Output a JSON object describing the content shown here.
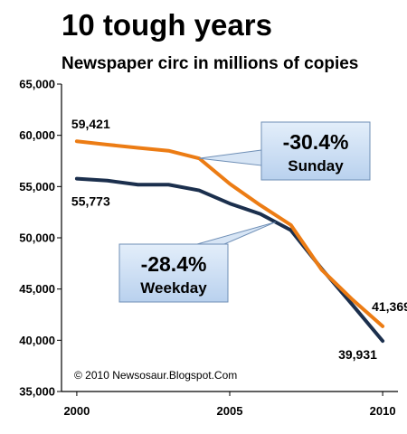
{
  "chart_data": {
    "type": "line",
    "title": "10 tough years",
    "subtitle": "Newspaper circ in millions of copies",
    "x": [
      2000,
      2001,
      2002,
      2003,
      2004,
      2005,
      2006,
      2007,
      2008,
      2009,
      2010
    ],
    "x_ticks": [
      "2000",
      "2005",
      "2010"
    ],
    "y_ticks": [
      "35,000",
      "40,000",
      "45,000",
      "50,000",
      "55,000",
      "60,000",
      "65,000"
    ],
    "xlim": [
      1999.5,
      2010.5
    ],
    "ylim": [
      35000,
      65000
    ],
    "grid": false,
    "series": [
      {
        "name": "Sunday",
        "color": "#ec7c14",
        "values": [
          59421,
          59090,
          58780,
          58495,
          57753,
          55270,
          53179,
          51246,
          46900,
          44000,
          41369
        ]
      },
      {
        "name": "Weekday",
        "color": "#1b2f4d",
        "values": [
          55773,
          55578,
          55186,
          55185,
          54626,
          53345,
          52329,
          50742,
          47000,
          43500,
          39931
        ]
      }
    ],
    "data_labels": [
      {
        "text": "59,421",
        "series": "Sunday",
        "x": 2000
      },
      {
        "text": "55,773",
        "series": "Weekday",
        "x": 2000
      },
      {
        "text": "41,369",
        "series": "Sunday",
        "x": 2010
      },
      {
        "text": "39,931",
        "series": "Weekday",
        "x": 2010
      }
    ],
    "callouts": [
      {
        "percent": "-30.4%",
        "label": "Sunday",
        "fill": "#cfe0f3",
        "points_to": {
          "series": "Sunday",
          "x": 2004
        }
      },
      {
        "percent": "-28.4%",
        "label": "Weekday",
        "fill": "#cfe0f3",
        "points_to": {
          "series": "Weekday",
          "x": 2006.5
        }
      }
    ],
    "credit": "© 2010 Newsosaur.Blogspot.Com"
  }
}
